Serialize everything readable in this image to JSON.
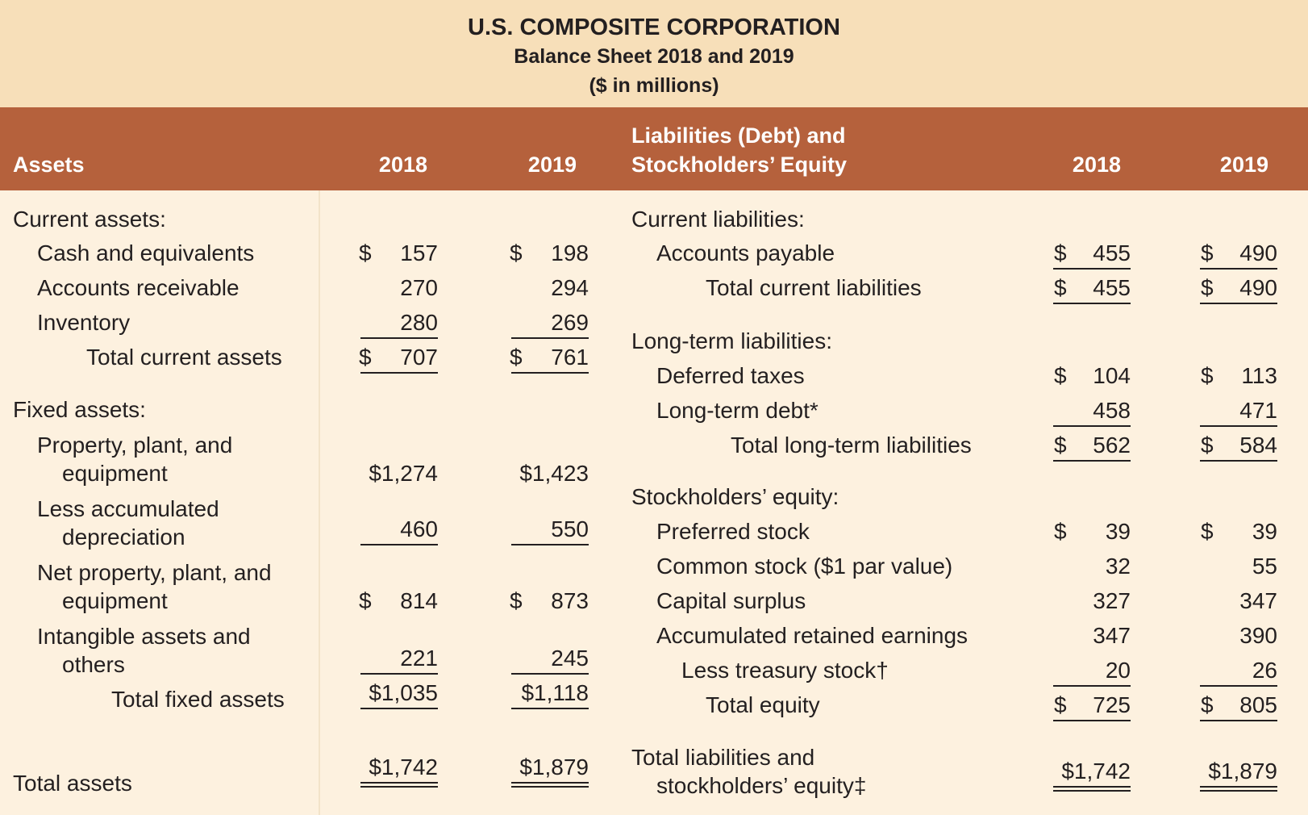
{
  "header": {
    "company": "U.S. COMPOSITE CORPORATION",
    "subtitle": "Balance Sheet 2018 and 2019",
    "units": "($ in millions)"
  },
  "columns": {
    "assets": "Assets",
    "liab_line1": "Liabilities (Debt) and",
    "liab_line2": "Stockholders’ Equity",
    "y1": "2018",
    "y2": "2019"
  },
  "assets": {
    "current_heading": "Current assets:",
    "cash": {
      "label": "Cash and equivalents",
      "v2018": "157",
      "v2019": "198"
    },
    "receivable": {
      "label": "Accounts receivable",
      "v2018": "270",
      "v2019": "294"
    },
    "inventory": {
      "label": "Inventory",
      "v2018": "280",
      "v2019": "269"
    },
    "total_current": {
      "label": "Total current assets",
      "v2018": "707",
      "v2019": "761"
    },
    "fixed_heading": "Fixed assets:",
    "ppe": {
      "label1": "Property, plant, and",
      "label2": "equipment",
      "v2018": "$1,274",
      "v2019": "$1,423"
    },
    "depreciation": {
      "label1": "Less accumulated",
      "label2": "depreciation",
      "v2018": "460",
      "v2019": "550"
    },
    "net_ppe": {
      "label1": "Net property, plant, and",
      "label2": "equipment",
      "v2018": "814",
      "v2019": "873"
    },
    "intangible": {
      "label1": "Intangible assets and",
      "label2": "others",
      "v2018": "221",
      "v2019": "245"
    },
    "total_fixed": {
      "label": "Total fixed assets",
      "v2018": "$1,035",
      "v2019": "$1,118"
    },
    "total": {
      "label": "Total assets",
      "v2018": "$1,742",
      "v2019": "$1,879"
    }
  },
  "liabilities": {
    "current_heading": "Current liabilities:",
    "payable": {
      "label": "Accounts payable",
      "v2018": "455",
      "v2019": "490"
    },
    "total_current": {
      "label": "Total current liabilities",
      "v2018": "455",
      "v2019": "490"
    },
    "longterm_heading": "Long-term liabilities:",
    "deferred": {
      "label": "Deferred taxes",
      "v2018": "104",
      "v2019": "113"
    },
    "debt": {
      "label": "Long-term debt*",
      "v2018": "458",
      "v2019": "471"
    },
    "total_longterm": {
      "label": "Total long-term liabilities",
      "v2018": "562",
      "v2019": "584"
    },
    "equity_heading": "Stockholders’ equity:",
    "preferred": {
      "label": "Preferred stock",
      "v2018": "39",
      "v2019": "39"
    },
    "common": {
      "label": "Common stock ($1 par value)",
      "v2018": "32",
      "v2019": "55"
    },
    "surplus": {
      "label": "Capital surplus",
      "v2018": "327",
      "v2019": "347"
    },
    "retained": {
      "label": "Accumulated retained earnings",
      "v2018": "347",
      "v2019": "390"
    },
    "treasury": {
      "label": "Less treasury stock†",
      "v2018": "20",
      "v2019": "26"
    },
    "total_equity": {
      "label": "Total equity",
      "v2018": "725",
      "v2019": "805"
    },
    "total": {
      "label1": "Total liabilities and",
      "label2": "stockholders’ equity‡",
      "v2018": "$1,742",
      "v2019": "$1,879"
    }
  },
  "currency_symbol": "$",
  "colors": {
    "banner": "#f7dfb9",
    "header": "#b5613c",
    "body": "#fdf1df"
  }
}
